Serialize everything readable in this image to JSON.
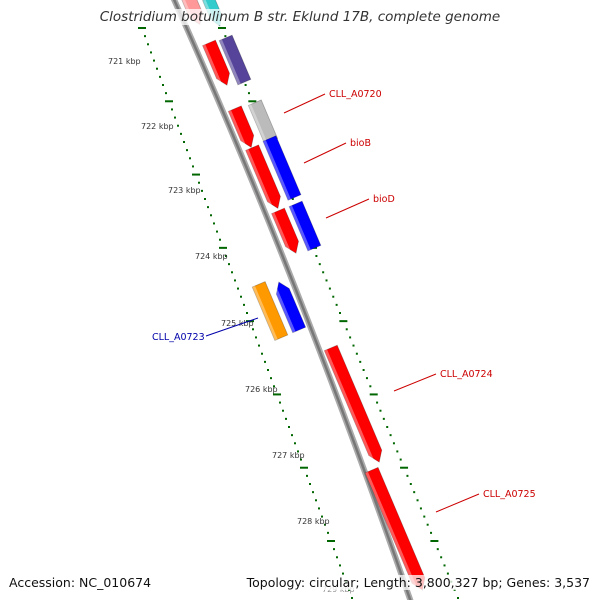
{
  "title": "Clostridium botulinum B str. Eklund 17B, complete genome",
  "footer": {
    "accession": "Accession: NC_010674",
    "summary": "Topology: circular; Length: 3,800,327 bp; Genes: 3,537"
  },
  "colors": {
    "forward_gene": "#ff0000",
    "reverse_gene": "#0000ff",
    "label_forward": "#cc0000",
    "label_reverse": "#0000aa",
    "backbone": "#888888",
    "gc_ticks": "#006600",
    "orange_feature": "#ff9900",
    "cyan_feature": "#33cccc",
    "purple_feature": "#554499",
    "grey_feature": "#bbbbbb"
  },
  "ticks": [
    {
      "kbp": 721,
      "label": "721 kbp"
    },
    {
      "kbp": 722,
      "label": "722 kbp"
    },
    {
      "kbp": 723,
      "label": "723 kbp"
    },
    {
      "kbp": 724,
      "label": "724 kbp"
    },
    {
      "kbp": 725,
      "label": "725 kbp"
    },
    {
      "kbp": 726,
      "label": "726 kbp"
    },
    {
      "kbp": 727,
      "label": "727 kbp"
    },
    {
      "kbp": 728,
      "label": "728 kbp"
    }
  ],
  "labels": [
    {
      "name": "CLL_A0720",
      "strand": "+"
    },
    {
      "name": "bioB",
      "strand": "+"
    },
    {
      "name": "bioD",
      "strand": "+"
    },
    {
      "name": "CLL_A0723",
      "strand": "-"
    },
    {
      "name": "CLL_A0724",
      "strand": "+"
    },
    {
      "name": "CLL_A0725",
      "strand": "+"
    }
  ]
}
